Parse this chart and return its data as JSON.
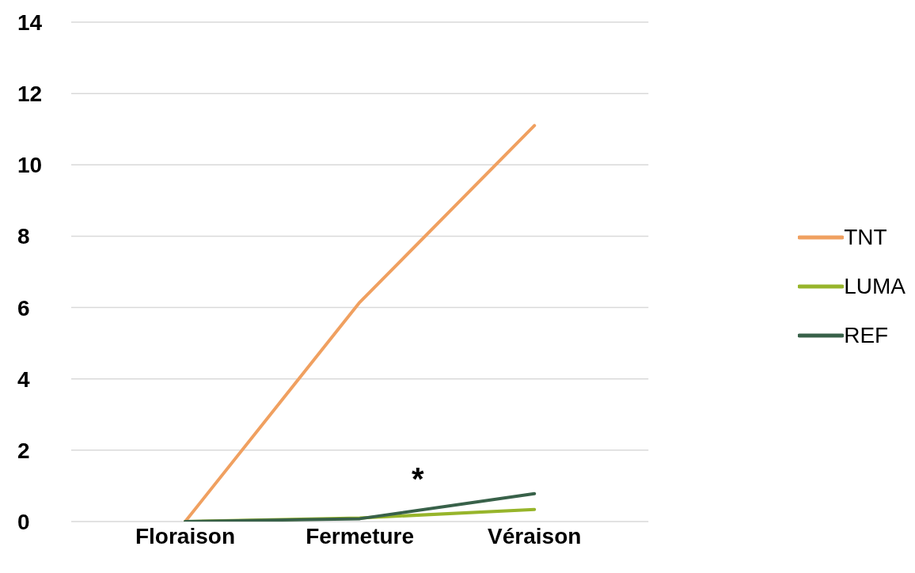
{
  "chart_data": {
    "type": "line",
    "categories": [
      "Floraison",
      "Fermeture",
      "Véraison"
    ],
    "series": [
      {
        "name": "TNT",
        "color": "#f0a060",
        "values": [
          0,
          6.15,
          11.1
        ]
      },
      {
        "name": "LUMA",
        "color": "#97b52b",
        "values": [
          0,
          0.1,
          0.34
        ]
      },
      {
        "name": "REF",
        "color": "#386149",
        "values": [
          0,
          0.08,
          0.78
        ]
      }
    ],
    "ylim": [
      0,
      14
    ],
    "yticks": [
      0,
      2,
      4,
      6,
      8,
      10,
      12,
      14
    ],
    "grid": "y",
    "legend": "right",
    "marker": "none",
    "line_style": "solid",
    "annotations": [
      "*"
    ]
  }
}
